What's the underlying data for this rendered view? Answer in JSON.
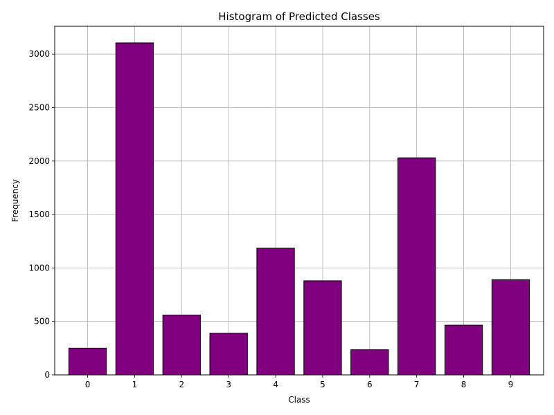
{
  "chart_data": {
    "type": "bar",
    "title": "Histogram of Predicted Classes",
    "xlabel": "Class",
    "ylabel": "Frequency",
    "categories": [
      "0",
      "1",
      "2",
      "3",
      "4",
      "5",
      "6",
      "7",
      "8",
      "9"
    ],
    "values": [
      250,
      3105,
      560,
      390,
      1185,
      880,
      235,
      2030,
      465,
      890
    ],
    "ylim": [
      0,
      3260
    ],
    "yticks": [
      0,
      500,
      1000,
      1500,
      2000,
      2500,
      3000
    ],
    "grid": true,
    "bar_color": "#800080",
    "edge_color": "#000000",
    "grid_color": "#b0b0b0"
  }
}
